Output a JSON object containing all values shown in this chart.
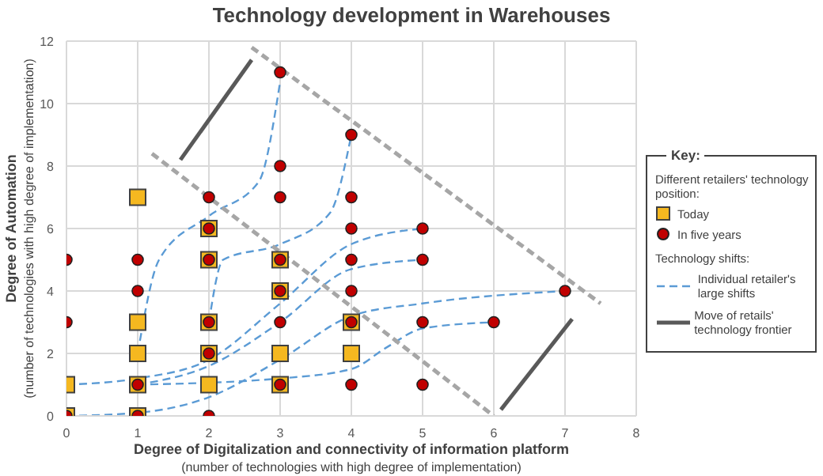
{
  "chart_data": {
    "type": "scatter",
    "title": "Technology development in Warehouses",
    "xlabel": "Degree of Digitalization and connectivity of information platform\n(number of technologies with high degree of implementation)",
    "ylabel": "Degree of Automation\n(number of technologies with high degree of implementation)",
    "legend_title": "Key:",
    "annotations": [
      "Different retailers' technology position:",
      "Technology shifts:"
    ],
    "xlim": [
      0,
      8
    ],
    "xticks": [
      0,
      1,
      2,
      3,
      4,
      5,
      6,
      7,
      8
    ],
    "ylim": [
      0,
      12
    ],
    "yticks": [
      0,
      2,
      4,
      6,
      8,
      10,
      12
    ],
    "grid": true,
    "legend": "right",
    "series": [
      {
        "name": "Today",
        "color": "#f5b820",
        "marker": "square",
        "x": [
          0,
          0,
          1,
          1,
          1,
          1,
          1,
          2,
          2,
          2,
          2,
          2,
          3,
          3,
          3,
          3,
          4,
          4
        ],
        "values": [
          1,
          0,
          7,
          3,
          2,
          1,
          0,
          6,
          5,
          3,
          2,
          1,
          5,
          4,
          2,
          1,
          3,
          2
        ]
      },
      {
        "name": "In five years",
        "color": "#c00000",
        "marker": "circle",
        "x": [
          0,
          0,
          0,
          1,
          1,
          1,
          1,
          2,
          2,
          2,
          2,
          2,
          2,
          3,
          3,
          3,
          3,
          3,
          3,
          3,
          4,
          4,
          4,
          4,
          4,
          4,
          4,
          5,
          5,
          5,
          5,
          6,
          7
        ],
        "values": [
          5,
          3,
          0,
          5,
          4,
          1,
          0,
          7,
          6,
          5,
          3,
          2,
          0,
          11,
          8,
          7,
          5,
          4,
          3,
          1,
          9,
          7,
          6,
          5,
          4,
          3,
          1,
          6,
          5,
          3,
          1,
          3,
          4
        ]
      },
      {
        "type": "line",
        "name": "Individual retailer's large shifts",
        "color": "#5b9bd5",
        "line_style": "dashed",
        "x": [
          1,
          1.3,
          2,
          2.7,
          3
        ],
        "values": [
          2,
          5,
          6.4,
          7.5,
          10.7
        ]
      },
      {
        "type": "line",
        "color": "#5b9bd5",
        "line_style": "dashed",
        "x": [
          2,
          2.2,
          3,
          3.7,
          4
        ],
        "values": [
          3,
          5,
          5.5,
          6.5,
          9
        ]
      },
      {
        "type": "line",
        "color": "#5b9bd5",
        "line_style": "dashed",
        "x": [
          0,
          1,
          2,
          3,
          4,
          5
        ],
        "values": [
          1,
          1.2,
          1.8,
          3.6,
          5.5,
          6
        ]
      },
      {
        "type": "line",
        "color": "#5b9bd5",
        "line_style": "dashed",
        "x": [
          1,
          2,
          3,
          4,
          5
        ],
        "values": [
          1,
          1.6,
          3,
          4.7,
          5
        ]
      },
      {
        "type": "line",
        "color": "#5b9bd5",
        "line_style": "dashed",
        "x": [
          0,
          1,
          2,
          3,
          4,
          5,
          7
        ],
        "values": [
          0,
          0.1,
          0.6,
          1.8,
          3.2,
          3.6,
          4
        ]
      },
      {
        "type": "line",
        "color": "#5b9bd5",
        "line_style": "dashed",
        "x": [
          1,
          3,
          4,
          4.5,
          5,
          6
        ],
        "values": [
          1,
          1.2,
          1.5,
          2.2,
          2.8,
          3
        ]
      },
      {
        "type": "line",
        "color": "#a6a6a6",
        "line_style": "dashed",
        "x": [
          1.2,
          6
        ],
        "values": [
          8.4,
          0
        ]
      },
      {
        "type": "line",
        "color": "#a6a6a6",
        "line_style": "dashed",
        "x": [
          2.6,
          7.5
        ],
        "values": [
          11.8,
          3.6
        ]
      },
      {
        "type": "line",
        "name": "Move of retails' technology frontier",
        "color": "#595959",
        "line_style": "solid",
        "x": [
          1.6,
          2.6
        ],
        "values": [
          8.2,
          11.4
        ]
      },
      {
        "type": "line",
        "color": "#595959",
        "line_style": "solid",
        "x": [
          6.1,
          7.1
        ],
        "values": [
          0.2,
          3.1
        ]
      }
    ]
  }
}
